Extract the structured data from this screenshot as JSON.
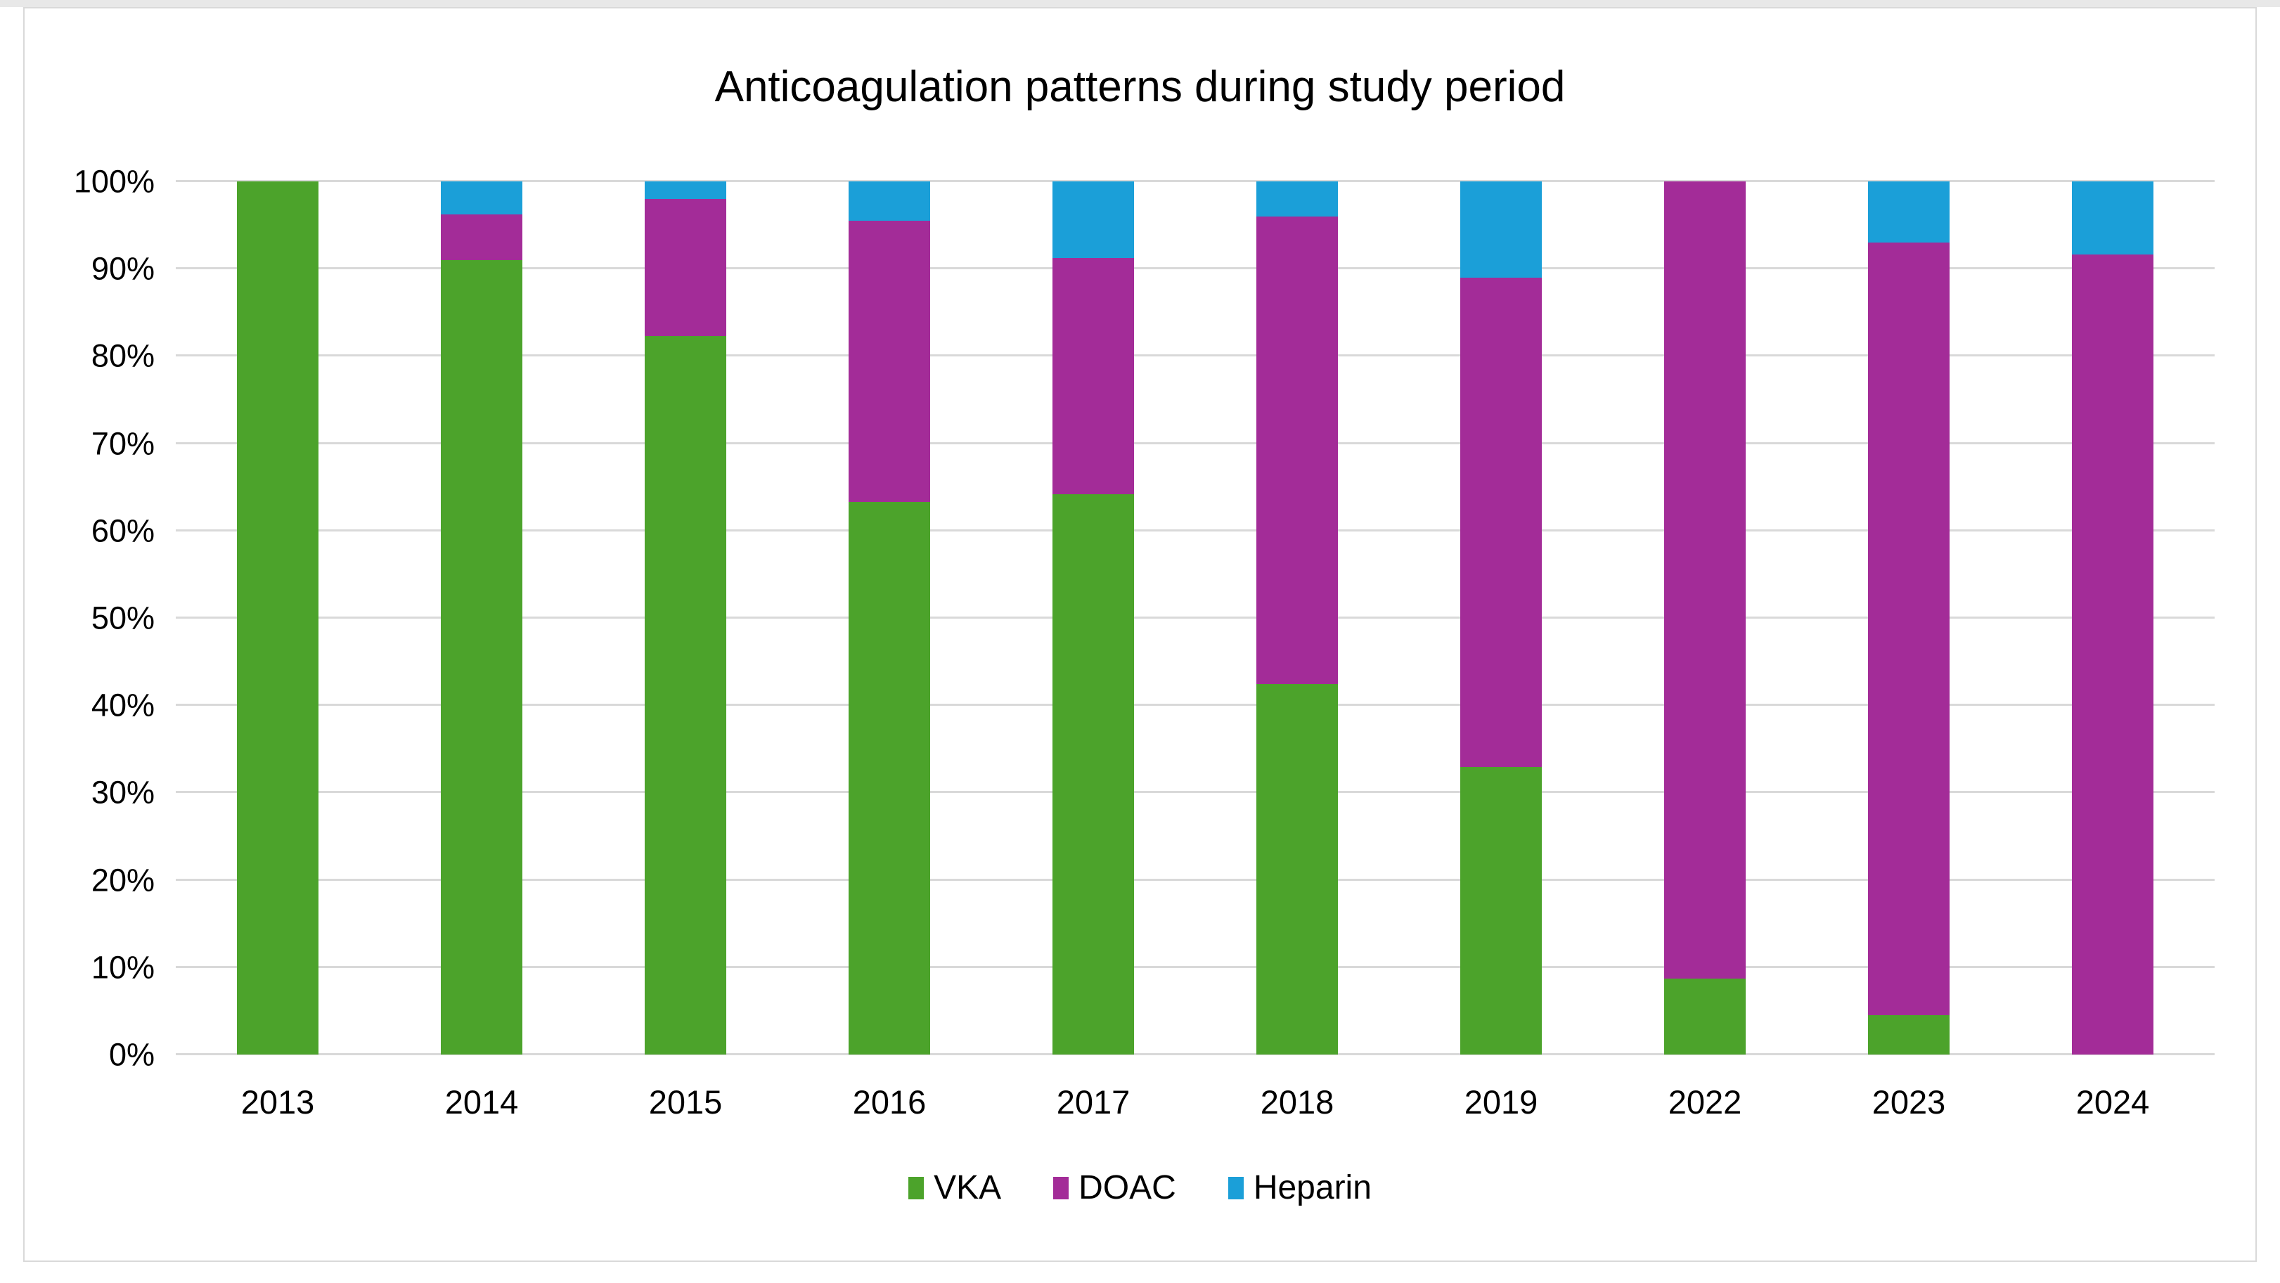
{
  "chart_data": {
    "type": "bar",
    "stacked": true,
    "percent_stacked": true,
    "title": "Anticoagulation patterns during study period",
    "xlabel": "",
    "ylabel": "",
    "categories": [
      "2013",
      "2014",
      "2015",
      "2016",
      "2017",
      "2018",
      "2019",
      "2022",
      "2023",
      "2024"
    ],
    "series": [
      {
        "name": "VKA",
        "color": "#4ca32b",
        "values": [
          100,
          91.0,
          82.3,
          63.3,
          64.2,
          42.4,
          32.9,
          8.7,
          4.5,
          0
        ]
      },
      {
        "name": "DOAC",
        "color": "#a32c98",
        "values": [
          0,
          5.2,
          15.7,
          32.2,
          27.0,
          53.6,
          56.1,
          91.3,
          88.5,
          91.6
        ]
      },
      {
        "name": "Heparin",
        "color": "#1b9fd8",
        "values": [
          0,
          3.8,
          2.0,
          4.5,
          8.8,
          4.0,
          11.0,
          0,
          7.0,
          8.4
        ]
      }
    ],
    "y_axis": {
      "min": 0,
      "max": 100,
      "tick_step": 10,
      "ticks": [
        "0%",
        "10%",
        "20%",
        "30%",
        "40%",
        "50%",
        "60%",
        "70%",
        "80%",
        "90%",
        "100%"
      ],
      "gridlines": true,
      "gridline_color": "#d9d9d9"
    },
    "legend": {
      "position": "bottom",
      "items": [
        "VKA",
        "DOAC",
        "Heparin"
      ]
    },
    "text_color": "#000000",
    "background_color": "#ffffff"
  }
}
